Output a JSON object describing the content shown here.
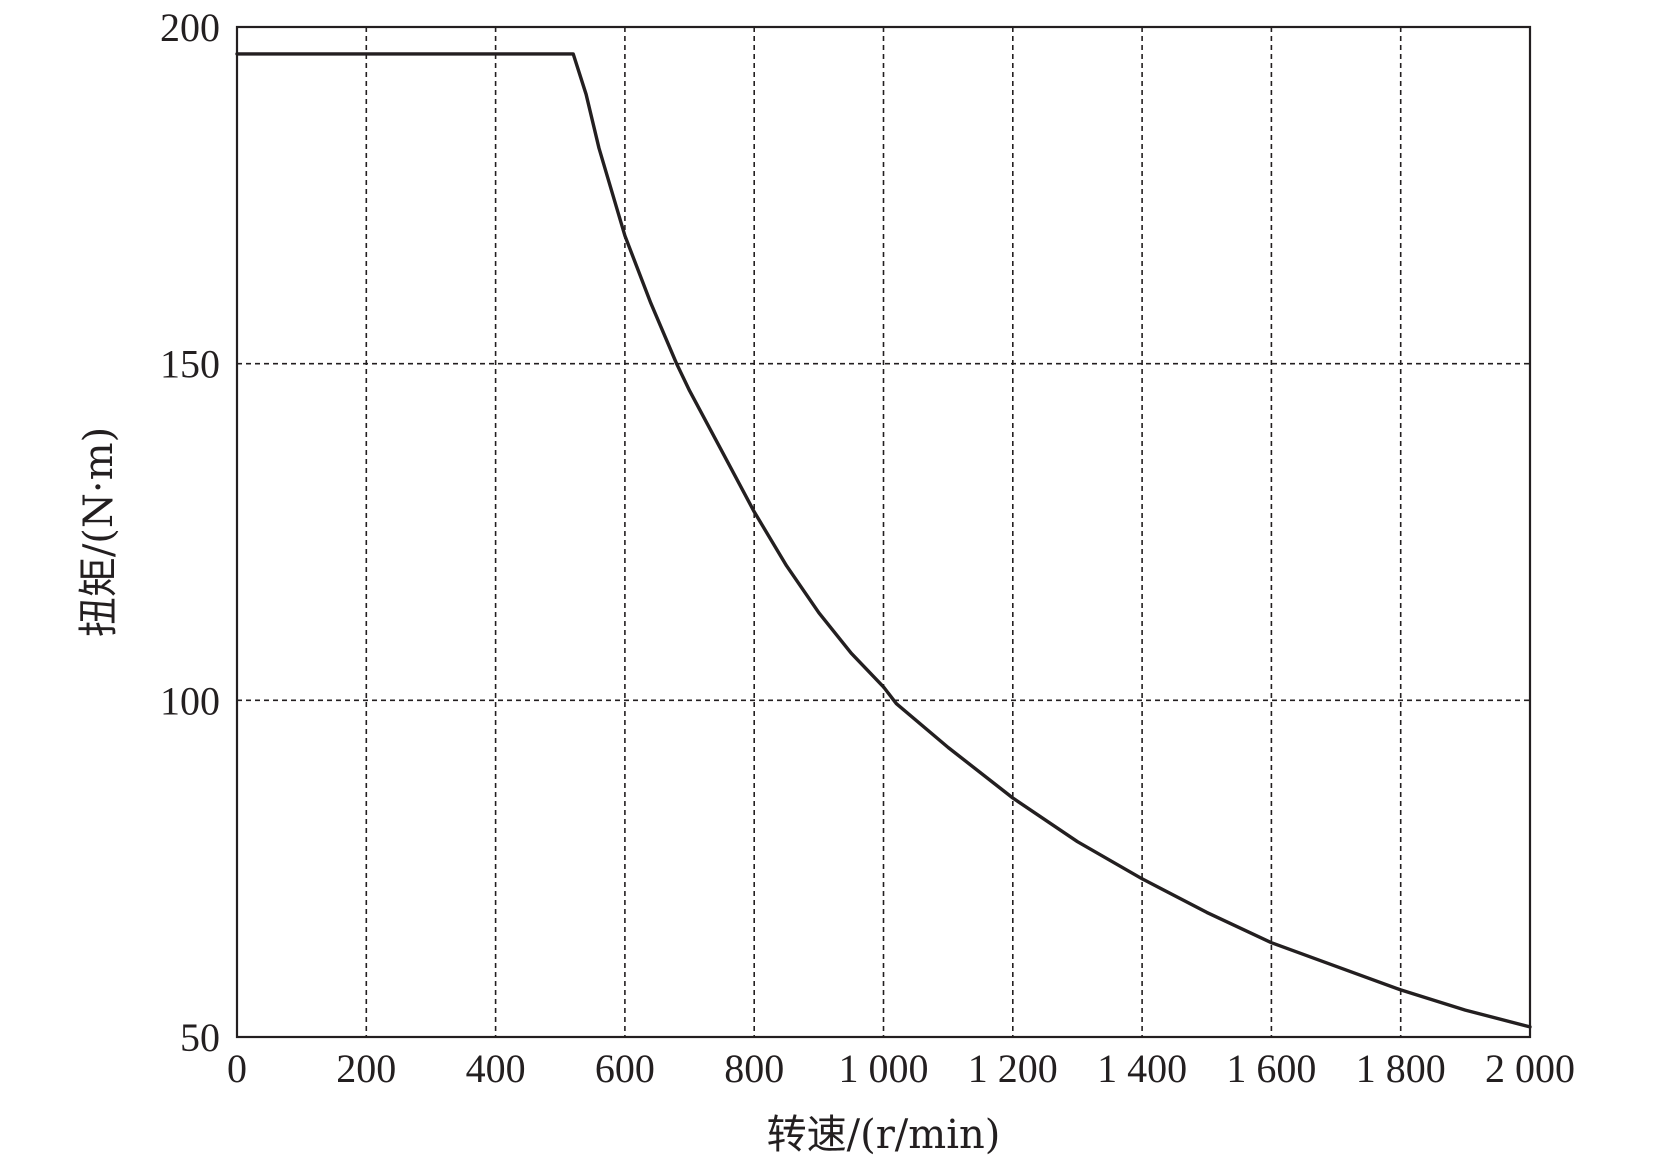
{
  "chart_data": {
    "type": "line",
    "title": "",
    "xlabel": "转速/(r/min)",
    "ylabel": "扭矩/(N·m)",
    "xlim": [
      0,
      2000
    ],
    "ylim": [
      50,
      200
    ],
    "x_ticks": [
      0,
      200,
      400,
      600,
      800,
      1000,
      1200,
      1400,
      1600,
      1800,
      2000
    ],
    "x_tick_labels": [
      "0",
      "200",
      "400",
      "600",
      "800",
      "1 000",
      "1 200",
      "1 400",
      "1 600",
      "1 800",
      "2 000"
    ],
    "y_ticks": [
      50,
      100,
      150,
      200
    ],
    "y_tick_labels": [
      "50",
      "100",
      "150",
      "200"
    ],
    "grid": true,
    "legend": "none",
    "line_color": "#231f20",
    "series": [
      {
        "x": [
          0,
          100,
          200,
          300,
          400,
          520,
          540,
          560,
          600,
          640,
          680,
          700,
          750,
          800,
          850,
          900,
          950,
          1000,
          1020,
          1100,
          1200,
          1300,
          1400,
          1500,
          1600,
          1700,
          1800,
          1900,
          2000
        ],
        "y": [
          196,
          196,
          196,
          196,
          196,
          196,
          190,
          182,
          169,
          159,
          150,
          146,
          137,
          128,
          120,
          113,
          107,
          102,
          99.5,
          93,
          85.5,
          79,
          73.5,
          68.5,
          64,
          60.5,
          57,
          54,
          51.5
        ]
      }
    ]
  }
}
